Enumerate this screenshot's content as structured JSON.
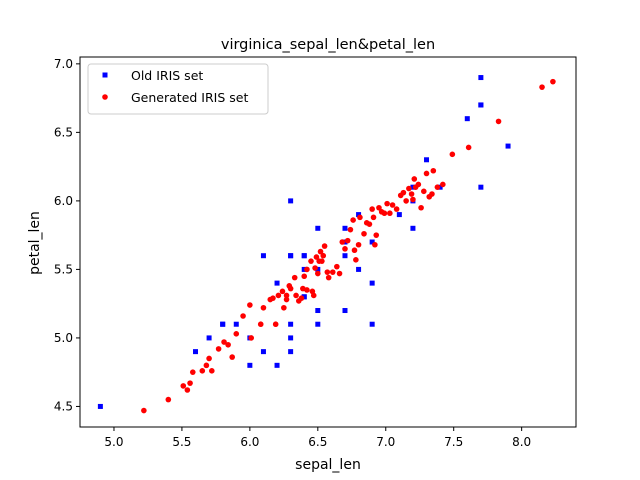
{
  "chart_data": {
    "type": "scatter",
    "title": "virginica_sepal_len&petal_len",
    "xlabel": "sepal_len",
    "ylabel": "petal_len",
    "xlim": [
      4.75,
      8.4
    ],
    "ylim": [
      4.35,
      7.05
    ],
    "xticks": [
      5.0,
      5.5,
      6.0,
      6.5,
      7.0,
      7.5,
      8.0
    ],
    "yticks": [
      4.5,
      5.0,
      5.5,
      6.0,
      6.5,
      7.0
    ],
    "xtick_labels": [
      "5.0",
      "5.5",
      "6.0",
      "6.5",
      "7.0",
      "7.5",
      "8.0"
    ],
    "ytick_labels": [
      "4.5",
      "5.0",
      "5.5",
      "6.0",
      "6.5",
      "7.0"
    ],
    "grid": false,
    "legend_position": "top-left",
    "series": [
      {
        "name": "Old IRIS set",
        "marker": "square",
        "color": "#0000ff",
        "points": [
          [
            6.3,
            6.0
          ],
          [
            5.8,
            5.1
          ],
          [
            7.1,
            5.9
          ],
          [
            6.3,
            5.6
          ],
          [
            6.5,
            5.8
          ],
          [
            7.6,
            6.6
          ],
          [
            4.9,
            4.5
          ],
          [
            7.3,
            6.3
          ],
          [
            6.7,
            5.8
          ],
          [
            7.2,
            6.1
          ],
          [
            6.5,
            5.1
          ],
          [
            6.4,
            5.3
          ],
          [
            6.8,
            5.5
          ],
          [
            5.7,
            5.0
          ],
          [
            5.8,
            5.1
          ],
          [
            6.4,
            5.3
          ],
          [
            6.5,
            5.5
          ],
          [
            7.7,
            6.7
          ],
          [
            7.7,
            6.9
          ],
          [
            6.0,
            5.0
          ],
          [
            6.9,
            5.7
          ],
          [
            5.6,
            4.9
          ],
          [
            7.7,
            6.7
          ],
          [
            6.3,
            4.9
          ],
          [
            6.7,
            5.7
          ],
          [
            7.2,
            6.0
          ],
          [
            6.2,
            4.8
          ],
          [
            6.1,
            4.9
          ],
          [
            6.4,
            5.6
          ],
          [
            7.2,
            5.8
          ],
          [
            7.4,
            6.1
          ],
          [
            7.9,
            6.4
          ],
          [
            6.4,
            5.6
          ],
          [
            6.3,
            5.1
          ],
          [
            6.1,
            5.6
          ],
          [
            7.7,
            6.1
          ],
          [
            6.3,
            5.6
          ],
          [
            6.4,
            5.5
          ],
          [
            6.0,
            4.8
          ],
          [
            6.9,
            5.4
          ],
          [
            6.7,
            5.6
          ],
          [
            6.9,
            5.1
          ],
          [
            6.8,
            5.9
          ],
          [
            6.7,
            5.7
          ],
          [
            6.7,
            5.2
          ],
          [
            6.3,
            5.0
          ],
          [
            6.5,
            5.2
          ],
          [
            6.2,
            5.4
          ],
          [
            5.9,
            5.1
          ]
        ]
      },
      {
        "name": "Generated IRIS set",
        "marker": "circle",
        "color": "#ff0000",
        "points": [
          [
            5.22,
            4.47
          ],
          [
            5.4,
            4.55
          ],
          [
            5.51,
            4.65
          ],
          [
            5.54,
            4.62
          ],
          [
            5.56,
            4.67
          ],
          [
            5.58,
            4.75
          ],
          [
            5.65,
            4.76
          ],
          [
            5.68,
            4.8
          ],
          [
            5.7,
            4.85
          ],
          [
            5.72,
            4.76
          ],
          [
            5.77,
            4.92
          ],
          [
            5.81,
            4.97
          ],
          [
            5.84,
            4.95
          ],
          [
            5.87,
            4.86
          ],
          [
            5.9,
            5.03
          ],
          [
            5.95,
            5.16
          ],
          [
            6.0,
            5.24
          ],
          [
            6.01,
            5.0
          ],
          [
            6.08,
            5.1
          ],
          [
            6.1,
            5.22
          ],
          [
            6.15,
            5.28
          ],
          [
            6.17,
            5.29
          ],
          [
            6.19,
            5.1
          ],
          [
            6.21,
            5.31
          ],
          [
            6.24,
            5.34
          ],
          [
            6.25,
            5.22
          ],
          [
            6.27,
            5.31
          ],
          [
            6.27,
            5.28
          ],
          [
            6.29,
            5.38
          ],
          [
            6.3,
            5.36
          ],
          [
            6.33,
            5.44
          ],
          [
            6.34,
            5.31
          ],
          [
            6.36,
            5.27
          ],
          [
            6.38,
            5.29
          ],
          [
            6.39,
            5.36
          ],
          [
            6.4,
            5.45
          ],
          [
            6.42,
            5.5
          ],
          [
            6.42,
            5.35
          ],
          [
            6.45,
            5.56
          ],
          [
            6.46,
            5.34
          ],
          [
            6.47,
            5.31
          ],
          [
            6.48,
            5.51
          ],
          [
            6.49,
            5.59
          ],
          [
            6.5,
            5.47
          ],
          [
            6.51,
            5.56
          ],
          [
            6.52,
            5.63
          ],
          [
            6.53,
            5.56
          ],
          [
            6.54,
            5.6
          ],
          [
            6.55,
            5.67
          ],
          [
            6.57,
            5.48
          ],
          [
            6.58,
            5.44
          ],
          [
            6.61,
            5.48
          ],
          [
            6.64,
            5.52
          ],
          [
            6.66,
            5.47
          ],
          [
            6.68,
            5.7
          ],
          [
            6.7,
            5.65
          ],
          [
            6.72,
            5.71
          ],
          [
            6.74,
            5.79
          ],
          [
            6.76,
            5.86
          ],
          [
            6.77,
            5.64
          ],
          [
            6.78,
            5.57
          ],
          [
            6.8,
            5.68
          ],
          [
            6.81,
            5.88
          ],
          [
            6.84,
            5.76
          ],
          [
            6.86,
            5.84
          ],
          [
            6.88,
            5.83
          ],
          [
            6.9,
            5.94
          ],
          [
            6.91,
            5.88
          ],
          [
            6.92,
            5.68
          ],
          [
            6.93,
            5.75
          ],
          [
            6.95,
            5.95
          ],
          [
            6.97,
            5.92
          ],
          [
            6.99,
            5.91
          ],
          [
            7.01,
            5.98
          ],
          [
            7.03,
            5.91
          ],
          [
            7.05,
            5.97
          ],
          [
            7.08,
            5.94
          ],
          [
            7.11,
            6.04
          ],
          [
            7.13,
            6.06
          ],
          [
            7.15,
            6.0
          ],
          [
            7.17,
            6.09
          ],
          [
            7.19,
            6.05
          ],
          [
            7.2,
            6.01
          ],
          [
            7.21,
            6.16
          ],
          [
            7.22,
            6.1
          ],
          [
            7.24,
            6.12
          ],
          [
            7.26,
            5.95
          ],
          [
            7.28,
            6.07
          ],
          [
            7.3,
            6.2
          ],
          [
            7.32,
            6.03
          ],
          [
            7.34,
            6.05
          ],
          [
            7.35,
            6.22
          ],
          [
            7.38,
            6.1
          ],
          [
            7.42,
            6.12
          ],
          [
            7.49,
            6.34
          ],
          [
            7.61,
            6.39
          ],
          [
            7.83,
            6.58
          ],
          [
            8.15,
            6.83
          ],
          [
            8.23,
            6.87
          ]
        ]
      }
    ]
  }
}
